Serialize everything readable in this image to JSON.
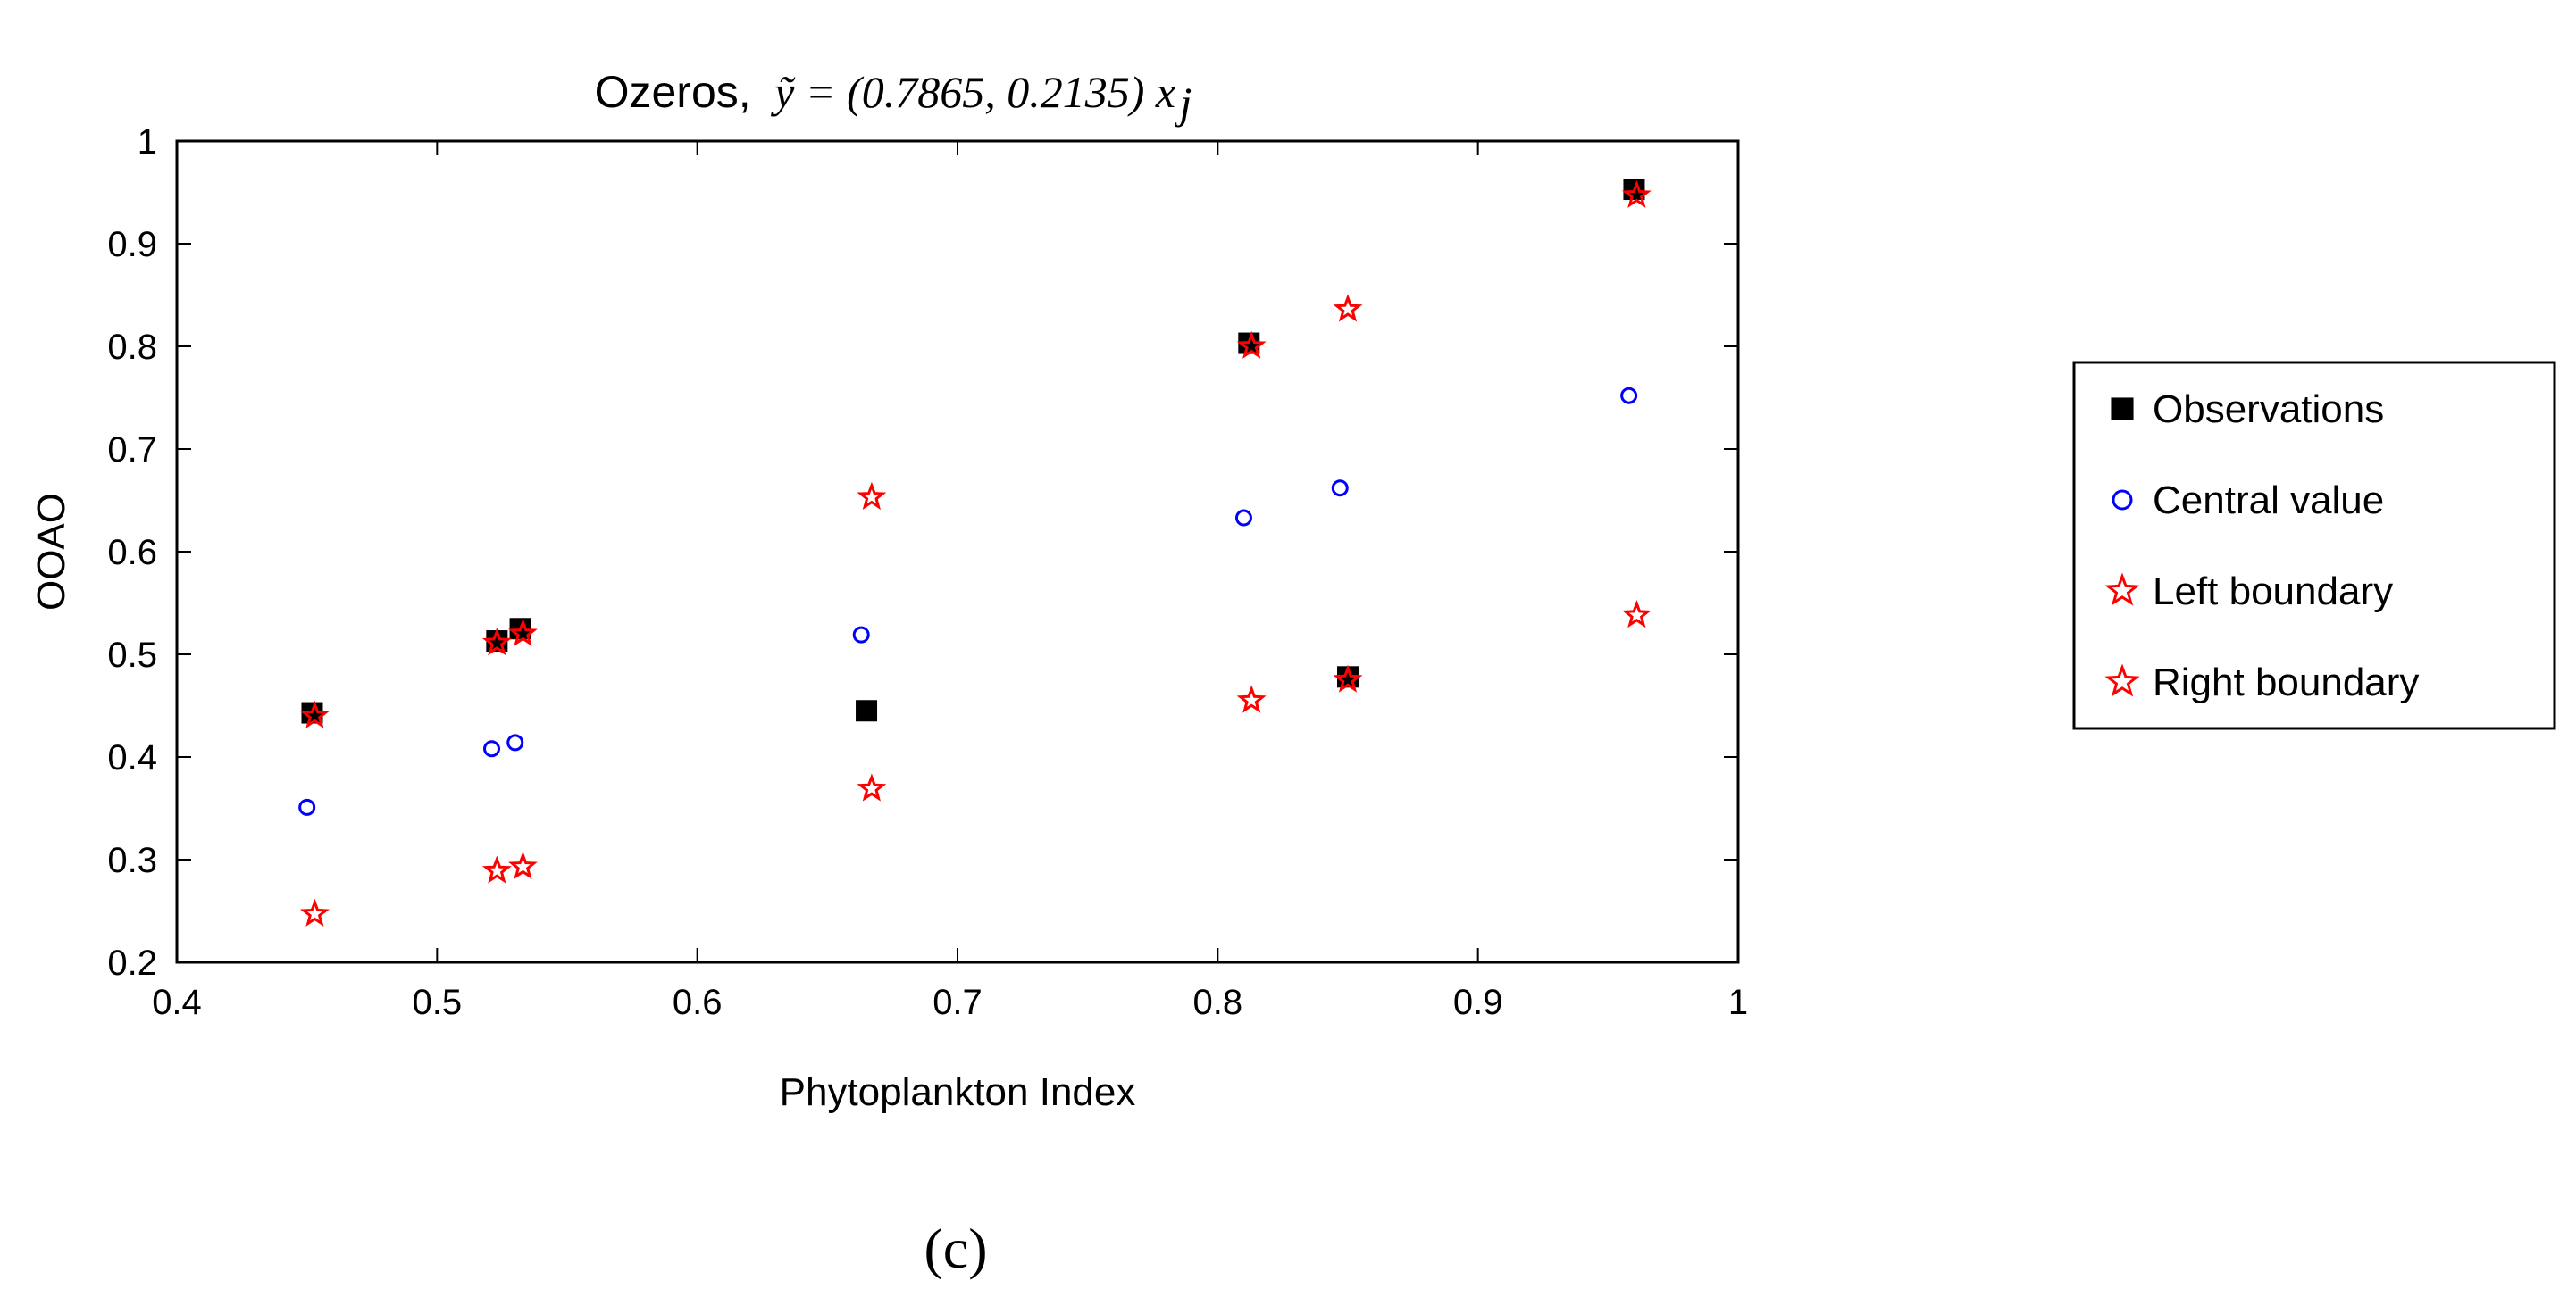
{
  "chart_data": {
    "type": "scatter",
    "title_prefix": "Ozeros,",
    "title_equation": "ỹ = (0.7865, 0.2135) x",
    "title_subscript": "j",
    "xlabel": "Phytoplankton Index",
    "ylabel": "OOAO",
    "xlim": [
      0.4,
      1.0
    ],
    "ylim": [
      0.2,
      1.0
    ],
    "x_ticks": [
      "0.4",
      "0.5",
      "0.6",
      "0.7",
      "0.8",
      "0.9",
      "1"
    ],
    "y_ticks": [
      "0.2",
      "0.3",
      "0.4",
      "0.5",
      "0.6",
      "0.7",
      "0.8",
      "0.9",
      "1"
    ],
    "grid": false,
    "legend_position": "right, outside",
    "series": [
      {
        "name": "Observations",
        "marker": "filled-square",
        "color": "#000000",
        "x": [
          0.452,
          0.523,
          0.532,
          0.665,
          0.812,
          0.85,
          0.96
        ],
        "y": [
          0.443,
          0.513,
          0.525,
          0.445,
          0.803,
          0.478,
          0.953
        ]
      },
      {
        "name": "Central value",
        "marker": "circle",
        "color": "#0000ff",
        "x": [
          0.45,
          0.521,
          0.53,
          0.663,
          0.81,
          0.847,
          0.958
        ],
        "y": [
          0.351,
          0.408,
          0.414,
          0.519,
          0.633,
          0.662,
          0.752
        ]
      },
      {
        "name": "Left boundary",
        "marker": "star",
        "color": "#ff0000",
        "x": [
          0.453,
          0.523,
          0.533,
          0.667,
          0.813,
          0.85,
          0.961
        ],
        "y": [
          0.247,
          0.289,
          0.293,
          0.369,
          0.455,
          0.475,
          0.538
        ]
      },
      {
        "name": "Right boundary",
        "marker": "star",
        "color": "#ff0000",
        "x": [
          0.453,
          0.523,
          0.533,
          0.667,
          0.813,
          0.85,
          0.961
        ],
        "y": [
          0.44,
          0.511,
          0.52,
          0.653,
          0.8,
          0.836,
          0.947
        ]
      }
    ]
  },
  "caption": "(c)"
}
